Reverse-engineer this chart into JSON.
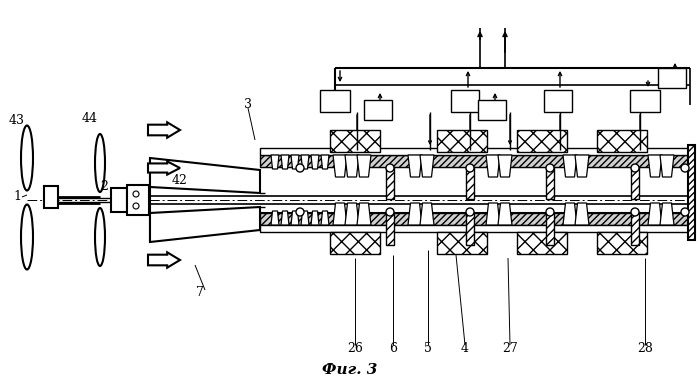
{
  "bg": "#ffffff",
  "lc": "#000000",
  "fig_caption": "Фиг. 3",
  "part_labels": [
    [
      "1",
      17,
      197
    ],
    [
      "2",
      104,
      187
    ],
    [
      "3",
      248,
      105
    ],
    [
      "42",
      180,
      181
    ],
    [
      "43",
      17,
      120
    ],
    [
      "44",
      90,
      118
    ],
    [
      "7",
      200,
      293
    ],
    [
      "26",
      355,
      348
    ],
    [
      "6",
      393,
      348
    ],
    [
      "5",
      428,
      348
    ],
    [
      "4",
      465,
      348
    ],
    [
      "27",
      510,
      348
    ],
    [
      "28",
      645,
      348
    ]
  ]
}
